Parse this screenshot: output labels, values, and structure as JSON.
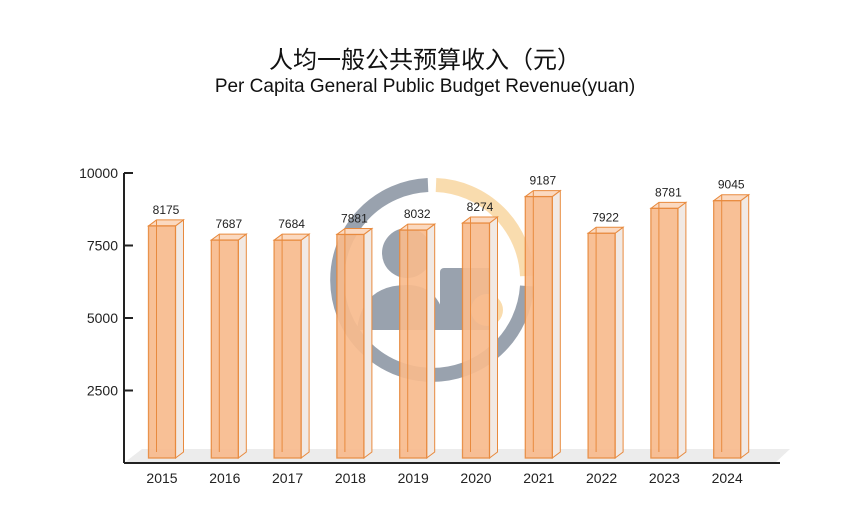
{
  "chart_data": {
    "type": "bar",
    "title": "人均一般公共预算收入（元）",
    "subtitle": "Per Capita General Public Budget Revenue(yuan)",
    "categories": [
      "2015",
      "2016",
      "2017",
      "2018",
      "2019",
      "2020",
      "2021",
      "2022",
      "2023",
      "2024"
    ],
    "values": [
      8175,
      7687,
      7684,
      7881,
      8032,
      8274,
      9187,
      7922,
      8781,
      9045
    ],
    "ylim": [
      0,
      10000
    ],
    "yticks": [
      2500,
      5000,
      7500,
      10000
    ],
    "grid": false,
    "legend": "none",
    "style": "3d-column",
    "colors": {
      "bar": "#f8bb8e",
      "bar_edge": "#e88a3e",
      "watermark_gray": "#8e98a6",
      "watermark_orange": "#f9d9a6"
    }
  }
}
